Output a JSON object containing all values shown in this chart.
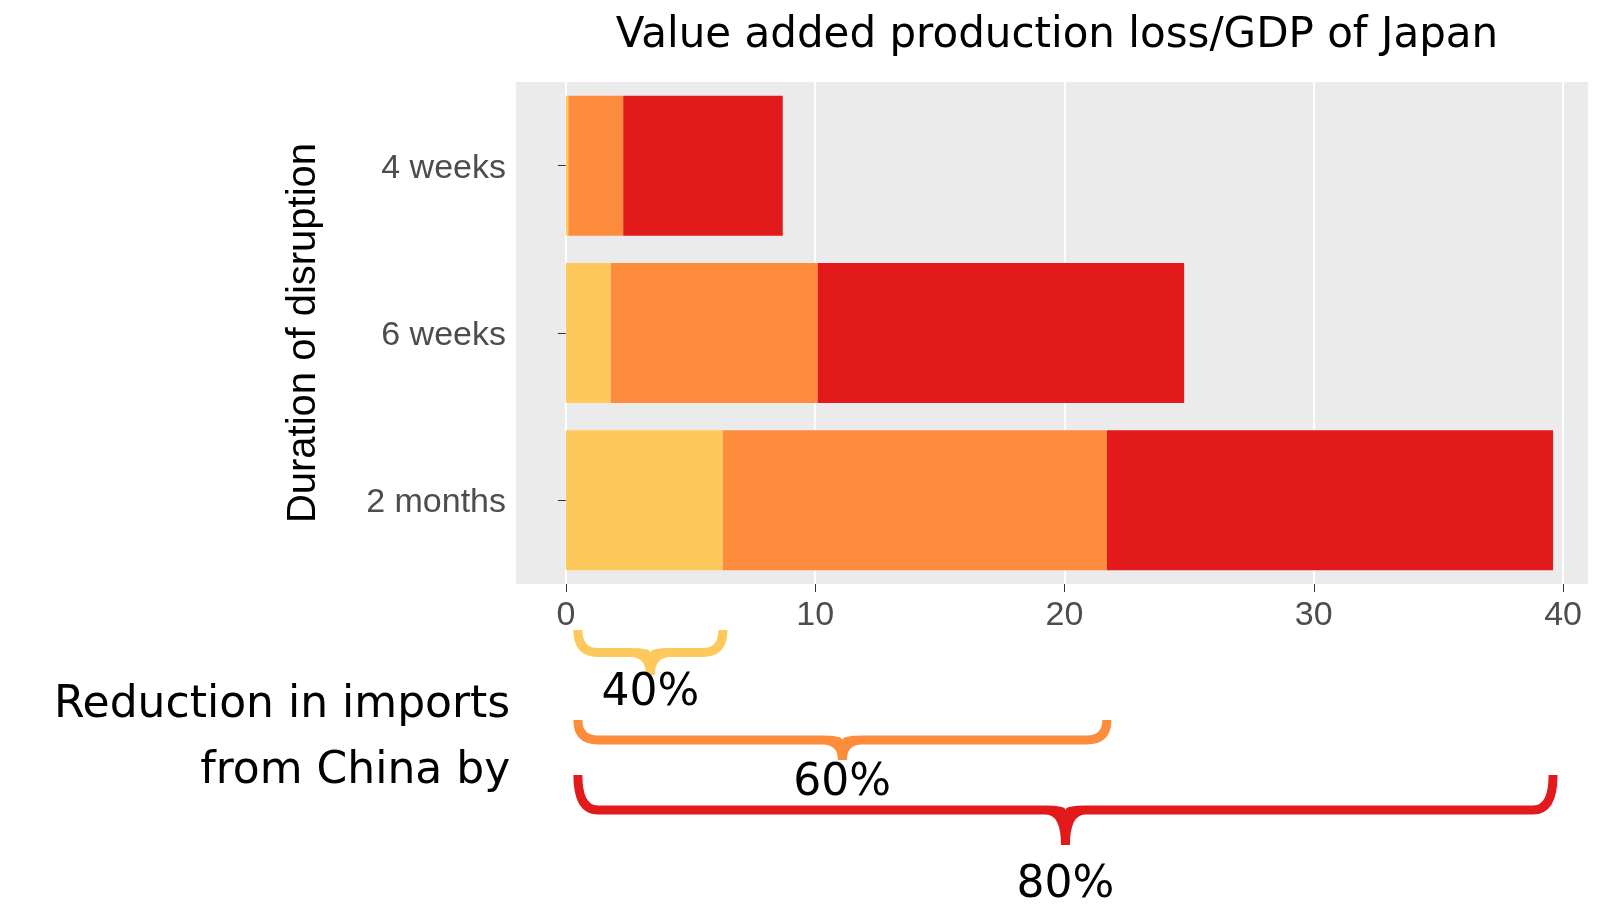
{
  "chart_data": {
    "type": "bar",
    "orientation": "horizontal",
    "stacked": true,
    "title": "Value added production loss/GDP of Japan",
    "ylabel": "Duration of disruption",
    "categories": [
      "4 weeks",
      "6 weeks",
      "2 months"
    ],
    "series": [
      {
        "color": "#fdc95c",
        "values": [
          0.1,
          1.8,
          6.3
        ]
      },
      {
        "color": "#fd8d3c",
        "values": [
          2.2,
          8.3,
          15.4
        ]
      },
      {
        "color": "#e31a1c",
        "values": [
          6.4,
          14.7,
          17.9
        ]
      }
    ],
    "xlim": [
      -2,
      41
    ],
    "xticks": [
      0,
      10,
      20,
      30,
      40
    ],
    "grid": true,
    "annotations": [
      "Reduction in imports\nfrom China by",
      "40%",
      "60%",
      "80%"
    ]
  }
}
